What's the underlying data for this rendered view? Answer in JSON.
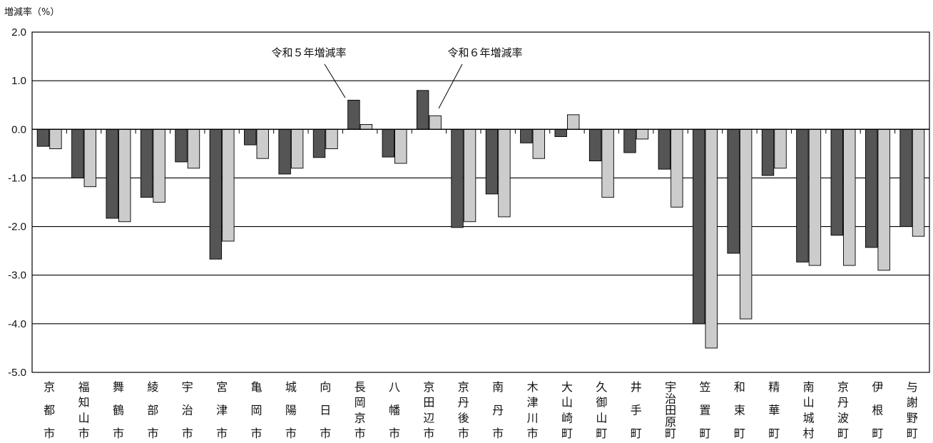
{
  "chart_data": {
    "type": "bar",
    "ylabel": "増減率（%）",
    "ylim": [
      -5.0,
      2.0
    ],
    "yticks": [
      "2.0",
      "1.0",
      "0.0",
      "-1.0",
      "-2.0",
      "-3.0",
      "-4.0",
      "-5.0"
    ],
    "grid": true,
    "categories": [
      [
        "京",
        "都",
        "市"
      ],
      [
        "福",
        "知",
        "山",
        "市"
      ],
      [
        "舞",
        "鶴",
        "市"
      ],
      [
        "綾",
        "部",
        "市"
      ],
      [
        "宇",
        "治",
        "市"
      ],
      [
        "宮",
        "津",
        "市"
      ],
      [
        "亀",
        "岡",
        "市"
      ],
      [
        "城",
        "陽",
        "市"
      ],
      [
        "向",
        "日",
        "市"
      ],
      [
        "長",
        "岡",
        "京",
        "市"
      ],
      [
        "八",
        "幡",
        "市"
      ],
      [
        "京",
        "田",
        "辺",
        "市"
      ],
      [
        "京",
        "丹",
        "後",
        "市"
      ],
      [
        "南",
        "丹",
        "市"
      ],
      [
        "木",
        "津",
        "川",
        "市"
      ],
      [
        "大",
        "山",
        "崎",
        "町"
      ],
      [
        "久",
        "御",
        "山",
        "町"
      ],
      [
        "井",
        "手",
        "町"
      ],
      [
        "宇",
        "治",
        "田",
        "原",
        "町"
      ],
      [
        "笠",
        "置",
        "町"
      ],
      [
        "和",
        "束",
        "町"
      ],
      [
        "精",
        "華",
        "町"
      ],
      [
        "南",
        "山",
        "城",
        "村"
      ],
      [
        "京",
        "丹",
        "波",
        "町"
      ],
      [
        "伊",
        "根",
        "町"
      ],
      [
        "与",
        "謝",
        "野",
        "町"
      ]
    ],
    "series": [
      {
        "name": "令和５年増減率",
        "color": "#555555",
        "values": [
          -0.35,
          -1.0,
          -1.83,
          -1.4,
          -0.67,
          -2.67,
          -0.32,
          -0.92,
          -0.58,
          0.6,
          -0.57,
          0.8,
          -2.02,
          -1.33,
          -0.28,
          -0.15,
          -0.65,
          -0.48,
          -0.82,
          -4.0,
          -2.55,
          -0.95,
          -2.73,
          -2.18,
          -2.43,
          -2.0
        ]
      },
      {
        "name": "令和６年増減率",
        "color": "#cccccc",
        "values": [
          -0.4,
          -1.18,
          -1.9,
          -1.5,
          -0.8,
          -2.3,
          -0.6,
          -0.8,
          -0.4,
          0.1,
          -0.7,
          0.28,
          -1.9,
          -1.8,
          -0.6,
          0.3,
          -1.4,
          -0.2,
          -1.6,
          -4.5,
          -3.9,
          -0.8,
          -2.8,
          -2.8,
          -2.9,
          -2.2
        ]
      }
    ],
    "annotations": [
      {
        "text": "令和５年増減率",
        "series_index": 0,
        "points_to_category": 9
      },
      {
        "text": "令和６年増減率",
        "series_index": 1,
        "points_to_category": 11
      }
    ]
  }
}
